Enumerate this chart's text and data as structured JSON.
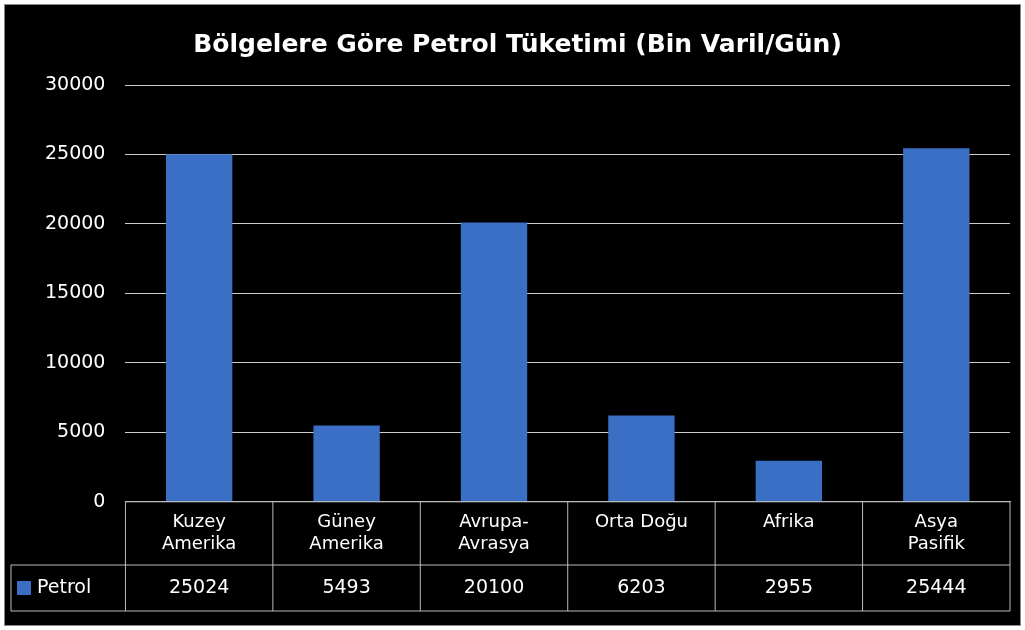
{
  "chart_data": {
    "type": "bar",
    "title": "Bölgelere Göre Petrol Tüketimi (Bin Varil/Gün)",
    "categories": [
      "Kuzey Amerika",
      "Güney Amerika",
      "Avrupa-Avrasya",
      "Orta Doğu",
      "Afrika",
      "Asya Pasifik"
    ],
    "series": [
      {
        "name": "Petrol",
        "color": "#3b6fc6",
        "values": [
          25024,
          5493,
          20100,
          6203,
          2955,
          25444
        ]
      }
    ],
    "ylim": [
      0,
      30000
    ],
    "yticks": [
      0,
      5000,
      10000,
      15000,
      20000,
      25000,
      30000
    ],
    "grid": "y",
    "legend": "bottom",
    "data_labels": true
  }
}
